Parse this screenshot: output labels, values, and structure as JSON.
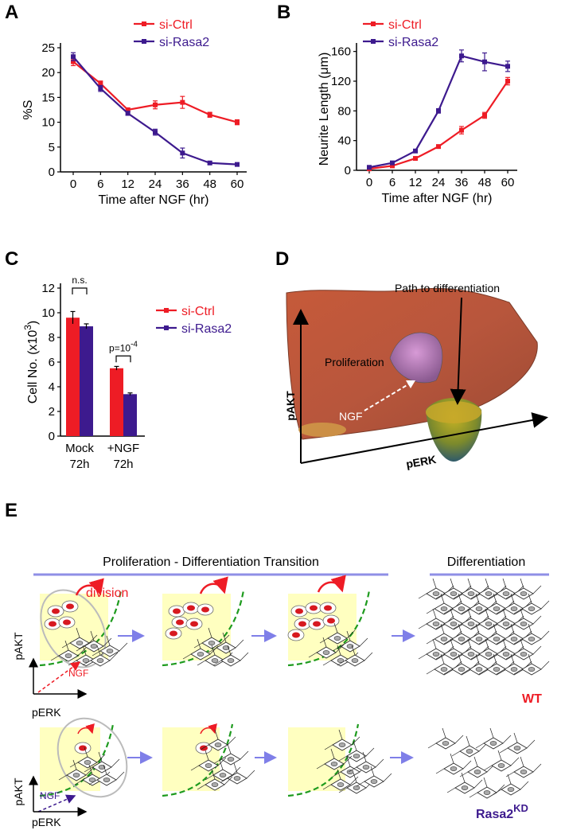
{
  "panels": {
    "A": "A",
    "B": "B",
    "C": "C",
    "D": "D",
    "E": "E"
  },
  "colors": {
    "ctrl": "#ee1c25",
    "rasa2": "#3d1a8e",
    "transition_line": "#8f8fe6",
    "arrow": "#7f7fe8",
    "yellow": "#ffffc0",
    "dashed_green": "#1e9b1e",
    "cell_nucleus": "#d71920"
  },
  "chart_data": [
    {
      "id": "A",
      "type": "line",
      "xlabel": "Time after NGF (hr)",
      "ylabel": "%S",
      "x": [
        0,
        6,
        12,
        24,
        36,
        48,
        60
      ],
      "xticks": [
        "0",
        "6",
        "12",
        "24",
        "36",
        "48",
        "60"
      ],
      "yticks": [
        "0",
        "5",
        "10",
        "15",
        "20",
        "25"
      ],
      "ylim": [
        0,
        25
      ],
      "series": [
        {
          "name": "si-Ctrl",
          "values": [
            22.2,
            17.8,
            12.5,
            13.5,
            14.0,
            11.5,
            10.0
          ],
          "err": [
            0.8,
            0.5,
            0.4,
            0.8,
            1.2,
            0.5,
            0.5
          ]
        },
        {
          "name": "si-Rasa2",
          "values": [
            23.2,
            16.8,
            11.8,
            8.0,
            3.8,
            1.8,
            1.5
          ],
          "err": [
            0.8,
            0.6,
            0.4,
            0.6,
            1.0,
            0.3,
            0.3
          ]
        }
      ]
    },
    {
      "id": "B",
      "type": "line",
      "xlabel": "Time after NGF (hr)",
      "ylabel": "Neurite Length (μm)",
      "x": [
        0,
        6,
        12,
        24,
        36,
        48,
        60
      ],
      "xticks": [
        "0",
        "6",
        "12",
        "24",
        "36",
        "48",
        "60"
      ],
      "yticks": [
        "0",
        "40",
        "80",
        "120",
        "160"
      ],
      "ylim": [
        0,
        165
      ],
      "series": [
        {
          "name": "si-Ctrl",
          "values": [
            2,
            6,
            16,
            32,
            54,
            74,
            120
          ],
          "err": [
            1,
            1,
            1,
            2,
            5,
            4,
            5
          ]
        },
        {
          "name": "si-Rasa2",
          "values": [
            4,
            10,
            26,
            80,
            154,
            146,
            140
          ],
          "err": [
            1,
            1,
            1,
            3,
            8,
            12,
            7
          ]
        }
      ]
    },
    {
      "id": "C",
      "type": "bar",
      "ylabel": "Cell No. (x10",
      "ylabel_sup": "3",
      "ylabel_end": ")",
      "categories": [
        "Mock\n72h",
        "+NGF\n72h"
      ],
      "category_lines": [
        [
          "Mock",
          "72h"
        ],
        [
          "+NGF",
          "72h"
        ]
      ],
      "yticks": [
        "0",
        "2",
        "4",
        "6",
        "8",
        "10",
        "12"
      ],
      "ylim": [
        0,
        12
      ],
      "series": [
        {
          "name": "si-Ctrl",
          "values": [
            9.6,
            5.5
          ],
          "err": [
            0.5,
            0.15
          ]
        },
        {
          "name": "si-Rasa2",
          "values": [
            8.9,
            3.4
          ],
          "err": [
            0.2,
            0.1
          ]
        }
      ],
      "annotations": [
        "n.s.",
        "p=10",
        "-4"
      ]
    }
  ],
  "panelD": {
    "title": "Path to differentiation",
    "proliferation": "Proliferation",
    "ngf": "NGF",
    "yaxis": "pAKT",
    "xaxis": "pERK"
  },
  "panelE": {
    "transition_header": "Proliferation - Differentiation Transition",
    "diff_header": "Differentiation",
    "division": "division",
    "ngf": "NGF",
    "pakt": "pAKT",
    "perk": "pERK",
    "wt": "WT",
    "kd": "Rasa2",
    "kd_sup": "KD"
  }
}
